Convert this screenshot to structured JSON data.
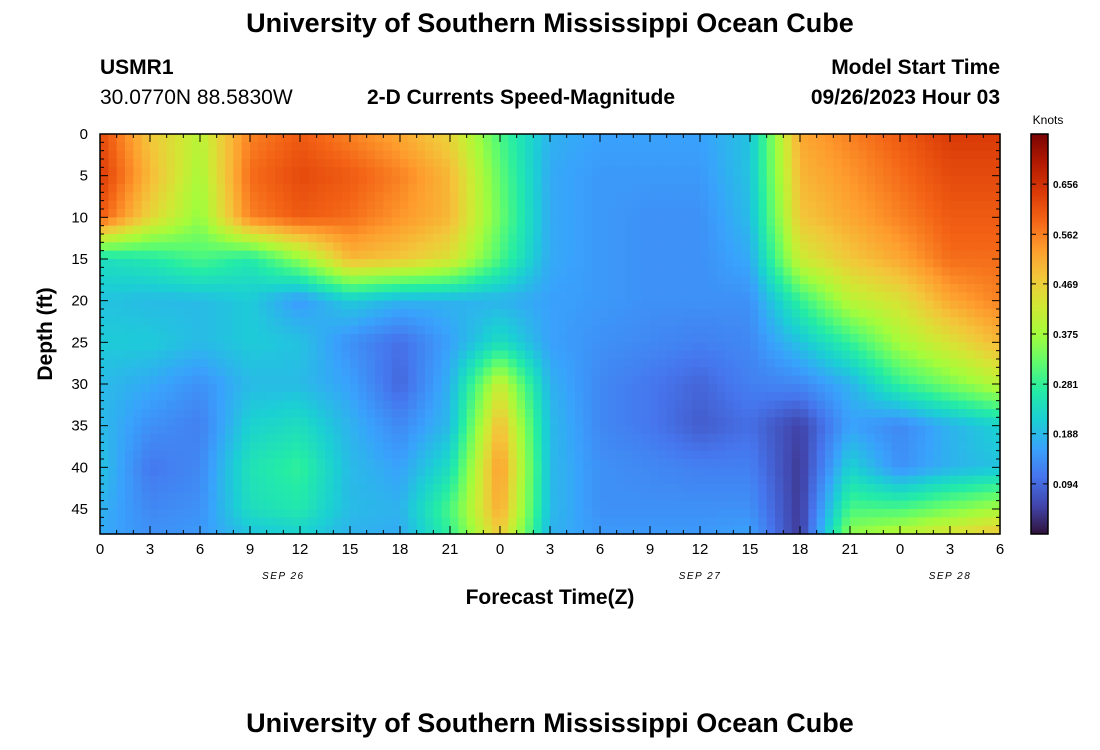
{
  "page": {
    "title": "University of Southern Mississippi Ocean Cube",
    "footer_title": "University of Southern Mississippi Ocean Cube",
    "station": "USMR1",
    "coords": "30.0770N  88.5830W",
    "plot_title": "2-D Currents Speed-Magnitude",
    "model_start_label": "Model Start Time",
    "model_start_value": "09/26/2023 Hour 03"
  },
  "chart_data": {
    "type": "heatmap",
    "title": "2-D Currents Speed-Magnitude",
    "xlabel": "Forecast Time(Z)",
    "ylabel": "Depth (ft)",
    "x_tick_labels": [
      "0",
      "3",
      "6",
      "9",
      "12",
      "15",
      "18",
      "21",
      "0",
      "3",
      "6",
      "9",
      "12",
      "15",
      "18",
      "21",
      "0",
      "3",
      "6"
    ],
    "x_tick_hours": [
      0,
      3,
      6,
      9,
      12,
      15,
      18,
      21,
      24,
      27,
      30,
      33,
      36,
      39,
      42,
      45,
      48,
      51,
      54
    ],
    "date_labels": [
      {
        "label": "SEP 26",
        "hour": 11
      },
      {
        "label": "SEP 27",
        "hour": 36
      },
      {
        "label": "SEP 28",
        "hour": 51
      }
    ],
    "xlim_hours": [
      0,
      54
    ],
    "y_tick_labels": [
      "0",
      "5",
      "10",
      "15",
      "20",
      "25",
      "30",
      "35",
      "40",
      "45"
    ],
    "y_ticks": [
      0,
      5,
      10,
      15,
      20,
      25,
      30,
      35,
      40,
      45
    ],
    "ylim": [
      0,
      48
    ],
    "y_inverted": true,
    "colorbar": {
      "label": "Knots",
      "tick_labels": [
        "0.656",
        "0.562",
        "0.469",
        "0.375",
        "0.281",
        "0.188",
        "0.094"
      ],
      "ticks": [
        0.656,
        0.562,
        0.469,
        0.375,
        0.281,
        0.188,
        0.094
      ],
      "range": [
        0.0,
        0.75
      ],
      "colormap": [
        "#30123b",
        "#4145ab",
        "#4675ed",
        "#39a2fc",
        "#1bcfd4",
        "#24eca6",
        "#61fc6c",
        "#a4fc3b",
        "#d1e834",
        "#f3c63a",
        "#fe9b2d",
        "#f36315",
        "#d93806",
        "#b11901",
        "#7a0403"
      ]
    },
    "z_grid": {
      "x_hours": [
        0,
        3,
        6,
        9,
        12,
        15,
        18,
        21,
        24,
        27,
        30,
        33,
        36,
        39,
        42,
        45,
        48,
        51,
        54
      ],
      "depths": [
        0,
        5,
        10,
        15,
        20,
        25,
        30,
        35,
        40,
        45,
        48
      ],
      "values": [
        [
          0.62,
          0.48,
          0.4,
          0.56,
          0.6,
          0.56,
          0.52,
          0.46,
          0.3,
          0.18,
          0.16,
          0.16,
          0.16,
          0.2,
          0.52,
          0.56,
          0.6,
          0.64,
          0.64
        ],
        [
          0.64,
          0.5,
          0.38,
          0.58,
          0.62,
          0.6,
          0.56,
          0.5,
          0.32,
          0.17,
          0.15,
          0.15,
          0.15,
          0.2,
          0.5,
          0.54,
          0.58,
          0.62,
          0.62
        ],
        [
          0.6,
          0.46,
          0.36,
          0.56,
          0.6,
          0.58,
          0.54,
          0.5,
          0.33,
          0.17,
          0.15,
          0.14,
          0.14,
          0.19,
          0.48,
          0.52,
          0.56,
          0.6,
          0.6
        ],
        [
          0.24,
          0.26,
          0.3,
          0.26,
          0.36,
          0.5,
          0.48,
          0.44,
          0.3,
          0.17,
          0.15,
          0.14,
          0.14,
          0.17,
          0.42,
          0.48,
          0.52,
          0.58,
          0.58
        ],
        [
          0.2,
          0.19,
          0.19,
          0.21,
          0.15,
          0.21,
          0.18,
          0.18,
          0.18,
          0.16,
          0.15,
          0.14,
          0.14,
          0.14,
          0.28,
          0.4,
          0.44,
          0.52,
          0.56
        ],
        [
          0.21,
          0.21,
          0.19,
          0.21,
          0.2,
          0.14,
          0.1,
          0.16,
          0.24,
          0.16,
          0.14,
          0.13,
          0.12,
          0.13,
          0.2,
          0.28,
          0.38,
          0.44,
          0.5
        ],
        [
          0.19,
          0.17,
          0.14,
          0.19,
          0.19,
          0.16,
          0.09,
          0.18,
          0.42,
          0.18,
          0.13,
          0.11,
          0.09,
          0.12,
          0.13,
          0.18,
          0.28,
          0.34,
          0.4
        ],
        [
          0.19,
          0.14,
          0.12,
          0.22,
          0.24,
          0.18,
          0.13,
          0.19,
          0.5,
          0.19,
          0.13,
          0.11,
          0.08,
          0.1,
          0.05,
          0.16,
          0.13,
          0.18,
          0.22
        ],
        [
          0.2,
          0.11,
          0.13,
          0.25,
          0.28,
          0.19,
          0.16,
          0.24,
          0.54,
          0.19,
          0.14,
          0.13,
          0.12,
          0.12,
          0.04,
          0.22,
          0.14,
          0.18,
          0.2
        ],
        [
          0.18,
          0.13,
          0.14,
          0.24,
          0.26,
          0.19,
          0.18,
          0.3,
          0.52,
          0.19,
          0.14,
          0.14,
          0.14,
          0.14,
          0.04,
          0.3,
          0.3,
          0.34,
          0.38
        ],
        [
          0.17,
          0.14,
          0.15,
          0.2,
          0.22,
          0.18,
          0.17,
          0.28,
          0.48,
          0.18,
          0.15,
          0.15,
          0.15,
          0.16,
          0.04,
          0.36,
          0.4,
          0.44,
          0.48
        ]
      ]
    }
  }
}
